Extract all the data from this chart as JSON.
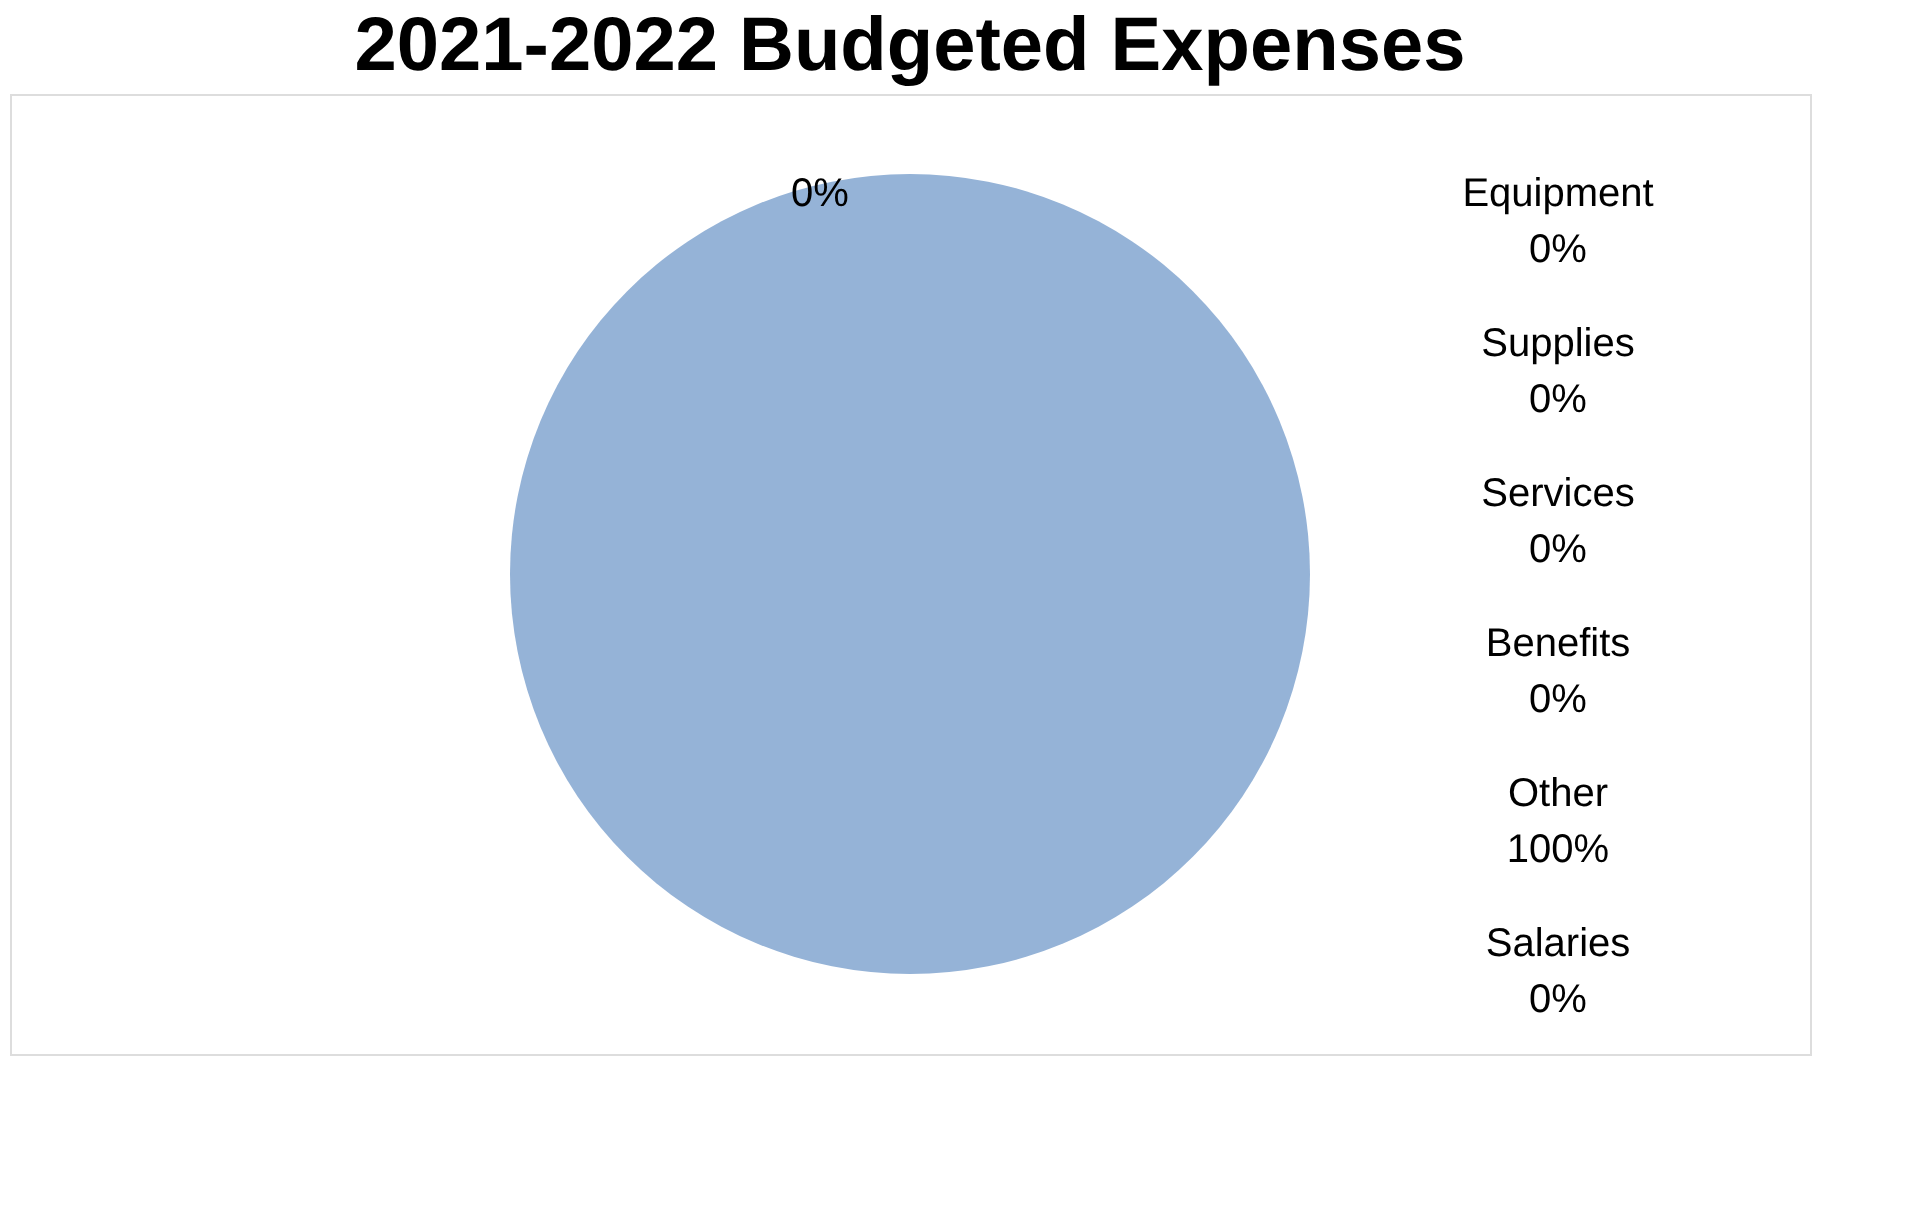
{
  "chart_data": {
    "type": "pie",
    "title": "2021-2022 Budgeted Expenses",
    "categories": [
      null,
      "Equipment",
      "Supplies",
      "Services",
      "Benefits",
      "Other",
      "Salaries"
    ],
    "values": [
      0,
      0,
      0,
      0,
      0,
      100,
      0
    ],
    "value_labels": [
      "0%",
      "0%",
      "0%",
      "0%",
      "0%",
      "100%",
      "0%"
    ],
    "colors": [
      "#4f81bd",
      "#c0504d",
      "#9bbb59",
      "#8064a2",
      "#4bacc6",
      "#95b3d7",
      "#f79646"
    ]
  }
}
